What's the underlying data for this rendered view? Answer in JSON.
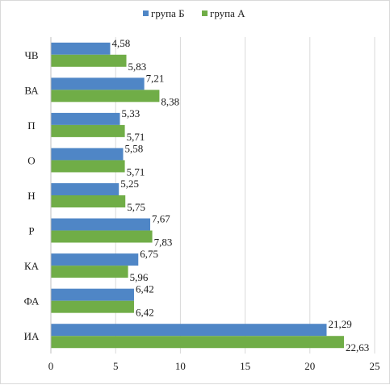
{
  "chart_data": {
    "type": "bar",
    "orientation": "horizontal",
    "categories": [
      "ЧВ",
      "ВА",
      "П",
      "О",
      "Н",
      "Р",
      "КА",
      "ФА",
      "ИА"
    ],
    "series": [
      {
        "name": "група Б",
        "color": "#4f86c6",
        "values": [
          4.58,
          7.21,
          5.33,
          5.58,
          5.25,
          7.67,
          6.75,
          6.42,
          21.29
        ],
        "labels": [
          "4,58",
          "7,21",
          "5,33",
          "5,58",
          "5,25",
          "7,67",
          "6,75",
          "6,42",
          "21,29"
        ]
      },
      {
        "name": "група А",
        "color": "#70ad47",
        "values": [
          5.83,
          8.38,
          5.71,
          5.71,
          5.75,
          7.83,
          5.96,
          6.42,
          22.63
        ],
        "labels": [
          "5,83",
          "8,38",
          "5,71",
          "5,71",
          "5,75",
          "7,83",
          "5,96",
          "6,42",
          "22,63"
        ]
      }
    ],
    "xlim": [
      0,
      25
    ],
    "xticks": [
      0,
      5,
      10,
      15,
      20,
      25
    ],
    "xtick_labels": [
      "0",
      "5",
      "10",
      "15",
      "20",
      "25"
    ],
    "grid": "vertical",
    "legend_position": "top",
    "title": "",
    "xlabel": "",
    "ylabel": ""
  }
}
